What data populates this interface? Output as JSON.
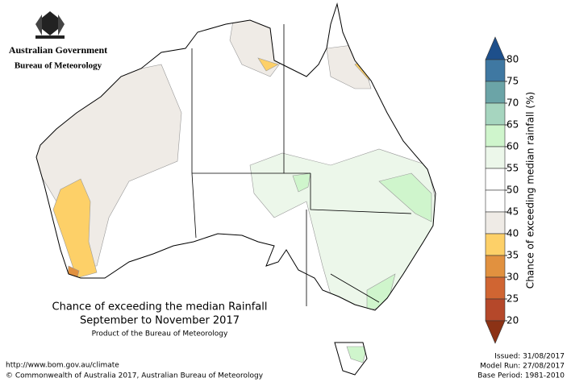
{
  "header": {
    "government": "Australian Government",
    "agency": "Bureau of Meteorology"
  },
  "map": {
    "title": "Chance of exceeding the median Rainfall",
    "subtitle": "September to November 2017",
    "credit": "Product of the Bureau of Meteorology"
  },
  "legend": {
    "label": "Chance of exceeding median rainfall (%)",
    "ticks": [
      80,
      75,
      70,
      65,
      60,
      55,
      50,
      45,
      40,
      35,
      30,
      25,
      20
    ],
    "colors": [
      "#1d4f8b",
      "#3f78a2",
      "#6ba4a7",
      "#a6d5bf",
      "#cff5cc",
      "#ecf7ea",
      "#ffffff",
      "#ffffff",
      "#efebe6",
      "#fdd068",
      "#e1913f",
      "#d06532",
      "#b5482a",
      "#8c3215"
    ]
  },
  "footer": {
    "url": "http://www.bom.gov.au/climate",
    "copyright": "© Commonwealth of Australia 2017, Australian Bureau of Meteorology",
    "issued": "Issued: 31/08/2017",
    "model_run": "Model Run: 27/08/2017",
    "base_period": "Base Period: 1981-2010"
  }
}
